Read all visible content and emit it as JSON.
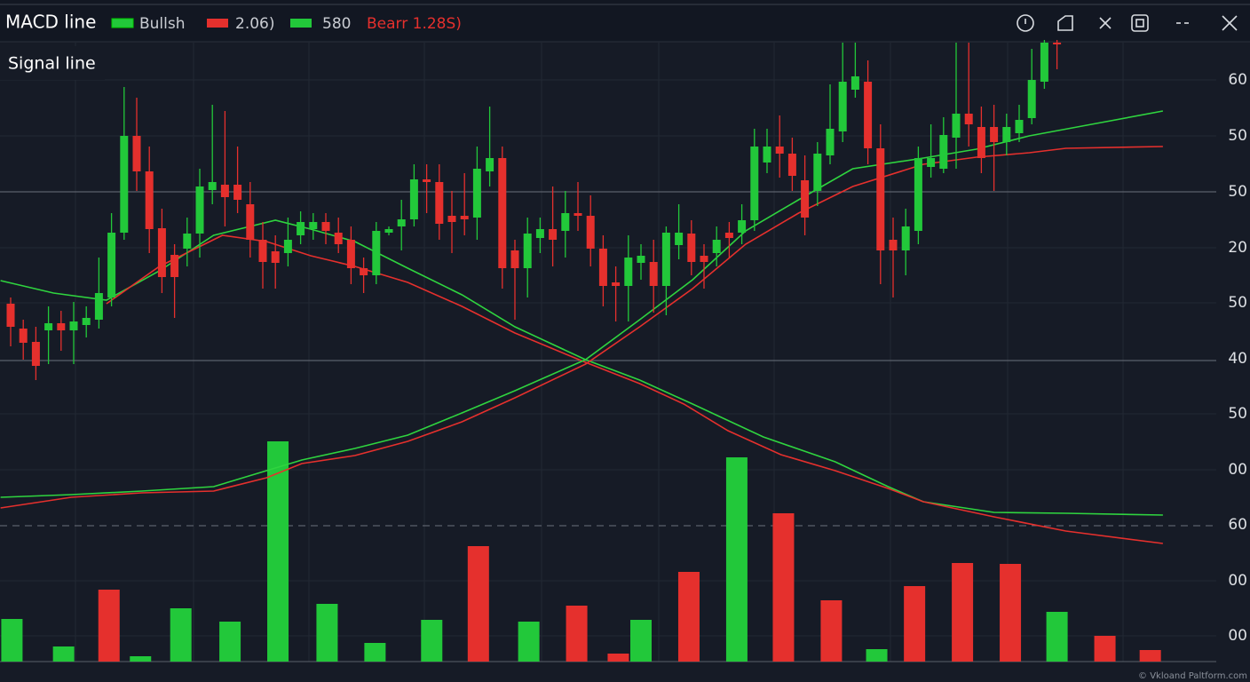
{
  "header": {
    "title": "MACD line",
    "legend": [
      {
        "label": "Bullsh",
        "color": "#22c83a"
      },
      {
        "label": "2.06)",
        "color": "#e5302d"
      },
      {
        "label": "580",
        "color": "#22c83a"
      }
    ],
    "bear_label": "Bearr 1.28S)",
    "signal_label": "Signal line"
  },
  "axis_labels": [
    "60",
    "50",
    "50",
    "20",
    "50",
    "40",
    "50",
    "00",
    "60",
    "00",
    "00"
  ],
  "watermark": "© Vkloand Paltform.com",
  "chart_data": {
    "type": "candlestick",
    "ylim": [
      0,
      697
    ],
    "up_color": "#22c83a",
    "down_color": "#e5302d",
    "open": [
      403,
      375,
      360,
      373,
      381,
      373,
      379,
      385,
      410,
      483,
      592,
      552,
      488,
      458,
      465,
      482,
      531,
      537,
      537,
      515,
      475,
      462,
      460,
      480,
      487,
      495,
      483,
      475,
      443,
      435,
      483,
      490,
      498,
      543,
      540,
      502,
      502,
      500,
      552,
      567,
      463,
      443,
      477,
      487,
      485,
      505,
      502,
      465,
      427,
      423,
      449,
      450,
      423,
      469,
      482,
      457,
      460,
      483,
      483,
      497,
      562,
      580,
      572,
      542,
      530,
      570,
      597,
      644,
      653,
      578,
      475,
      463,
      485,
      557,
      555,
      590,
      617,
      602,
      602,
      585,
      595,
      612,
      653,
      697
    ],
    "high": [
      410,
      385,
      377,
      400,
      395,
      405,
      400,
      455,
      505,
      647,
      635,
      580,
      510,
      470,
      500,
      555,
      627,
      620,
      580,
      540,
      495,
      480,
      500,
      507,
      505,
      505,
      500,
      490,
      455,
      495,
      490,
      520,
      560,
      560,
      560,
      530,
      550,
      580,
      625,
      580,
      475,
      500,
      500,
      535,
      530,
      540,
      525,
      480,
      445,
      480,
      470,
      475,
      490,
      515,
      497,
      470,
      490,
      495,
      515,
      600,
      600,
      615,
      590,
      570,
      585,
      650,
      697,
      697,
      677,
      605,
      500,
      510,
      580,
      605,
      613,
      697,
      697,
      625,
      627,
      617,
      627,
      690,
      700,
      700
    ],
    "low": [
      355,
      340,
      317,
      335,
      350,
      335,
      365,
      375,
      400,
      475,
      530,
      460,
      415,
      387,
      445,
      455,
      515,
      490,
      505,
      455,
      420,
      420,
      445,
      470,
      475,
      470,
      460,
      425,
      415,
      425,
      480,
      463,
      490,
      505,
      475,
      460,
      480,
      475,
      535,
      420,
      385,
      410,
      460,
      445,
      455,
      485,
      445,
      400,
      383,
      383,
      430,
      393,
      390,
      453,
      435,
      420,
      445,
      455,
      470,
      485,
      550,
      545,
      530,
      480,
      513,
      560,
      585,
      635,
      560,
      425,
      410,
      435,
      470,
      545,
      550,
      555,
      580,
      550,
      530,
      570,
      585,
      605,
      645,
      667
    ],
    "close": [
      377,
      359,
      333,
      381,
      373,
      383,
      387,
      415,
      483,
      592,
      552,
      487,
      433,
      433,
      482,
      535,
      540,
      523,
      520,
      475,
      450,
      449,
      475,
      495,
      495,
      485,
      470,
      443,
      435,
      485,
      487,
      498,
      543,
      540,
      493,
      495,
      498,
      555,
      567,
      443,
      443,
      482,
      487,
      475,
      505,
      502,
      465,
      423,
      423,
      455,
      457,
      423,
      483,
      483,
      450,
      450,
      475,
      477,
      497,
      580,
      580,
      572,
      547,
      500,
      572,
      600,
      653,
      659,
      578,
      463,
      463,
      490,
      567,
      567,
      593,
      617,
      605,
      567,
      585,
      602,
      610,
      655,
      697,
      695
    ],
    "lines": [
      {
        "color": "#2fd43f",
        "x": [
          -0.8,
          3.4,
          7.6,
          11.8,
          16.1,
          21.0,
          23.8,
          27.3,
          31.5,
          35.8,
          40.0,
          45.6,
          49.9,
          54.1,
          59.7,
          65.4,
          69.6,
          72.4,
          78.0,
          83.7,
          91.4
        ],
        "values": [
          429,
          415,
          407,
          440,
          480,
          497,
          487,
          473,
          443,
          413,
          377,
          340,
          317,
          290,
          253,
          225,
          197,
          180,
          168,
          167,
          165
        ]
      },
      {
        "color": "#e5302d",
        "x": [
          7.6,
          11.8,
          16.8,
          20.3,
          23.8,
          27.3,
          31.5,
          35.8,
          40.0,
          45.6,
          49.9,
          53.4,
          56.9,
          61.1,
          65.4,
          69.6,
          72.4,
          78.0,
          83.7,
          91.4
        ],
        "values": [
          403,
          445,
          480,
          473,
          457,
          445,
          427,
          400,
          370,
          337,
          313,
          290,
          260,
          233,
          215,
          195,
          180,
          163,
          147,
          133
        ]
      },
      {
        "color": "#2fd43f",
        "x": [
          -0.8,
          4.8,
          10.4,
          16.1,
          20.3,
          23.1,
          27.3,
          31.5,
          35.8,
          40.0,
          45.6,
          49.9,
          54.1,
          58.3,
          62.5,
          66.8,
          72.4,
          76.6,
          80.8,
          86.5,
          91.4
        ],
        "values": [
          185,
          188,
          192,
          197,
          215,
          227,
          240,
          255,
          280,
          305,
          340,
          385,
          430,
          485,
          520,
          555,
          567,
          577,
          592,
          607,
          620
        ]
      },
      {
        "color": "#e5302d",
        "x": [
          -0.8,
          4.8,
          10.4,
          16.1,
          20.3,
          23.1,
          27.3,
          31.5,
          35.8,
          40.0,
          45.6,
          49.9,
          54.1,
          58.3,
          62.5,
          66.8,
          72.4,
          76.6,
          80.8,
          83.7,
          91.4
        ],
        "values": [
          173,
          185,
          190,
          192,
          207,
          223,
          232,
          248,
          270,
          297,
          335,
          377,
          420,
          470,
          505,
          535,
          560,
          568,
          573,
          578,
          580
        ]
      }
    ],
    "histogram": {
      "x": [
        0.1,
        4.2,
        7.8,
        10.3,
        13.5,
        17.4,
        21.2,
        25.1,
        28.9,
        33.4,
        37.1,
        41.1,
        44.9,
        48.2,
        50.0,
        53.8,
        57.6,
        61.3,
        65.1,
        68.7,
        71.7,
        75.5,
        79.3,
        83.0,
        86.8,
        90.4
      ],
      "values": [
        48,
        17,
        81,
        6,
        60,
        45,
        248,
        65,
        21,
        47,
        130,
        45,
        63,
        9,
        47,
        101,
        230,
        167,
        69,
        14,
        85,
        111,
        110,
        56,
        29,
        13
      ],
      "colors": [
        "#22c83a",
        "#22c83a",
        "#e5302d",
        "#22c83a",
        "#22c83a",
        "#22c83a",
        "#22c83a",
        "#22c83a",
        "#22c83a",
        "#22c83a",
        "#e5302d",
        "#22c83a",
        "#e5302d",
        "#e5302d",
        "#22c83a",
        "#e5302d",
        "#22c83a",
        "#e5302d",
        "#e5302d",
        "#22c83a",
        "#e5302d",
        "#e5302d",
        "#e5302d",
        "#22c83a",
        "#e5302d",
        "#e5302d"
      ]
    }
  }
}
